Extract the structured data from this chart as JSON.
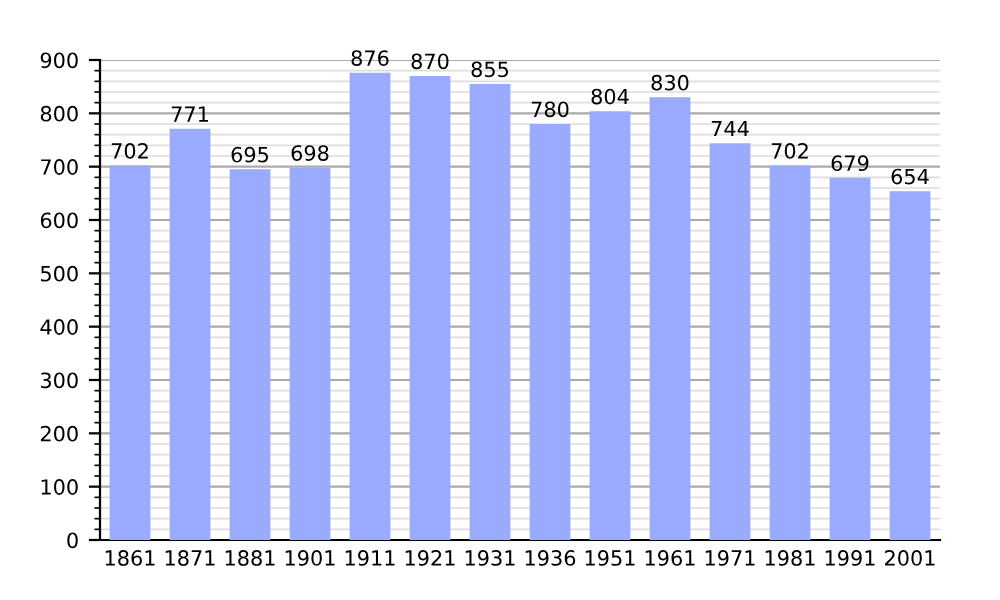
{
  "chart_data": {
    "type": "bar",
    "categories": [
      "1861",
      "1871",
      "1881",
      "1901",
      "1911",
      "1921",
      "1931",
      "1936",
      "1951",
      "1961",
      "1971",
      "1981",
      "1991",
      "2001"
    ],
    "values": [
      702,
      771,
      695,
      698,
      876,
      870,
      855,
      780,
      804,
      830,
      744,
      702,
      679,
      654
    ],
    "color": "#99aaff",
    "ylim": [
      0,
      900
    ],
    "yticks": [
      0,
      100,
      200,
      300,
      400,
      500,
      600,
      700,
      800,
      900
    ],
    "grid": "y",
    "data_labels": true
  }
}
